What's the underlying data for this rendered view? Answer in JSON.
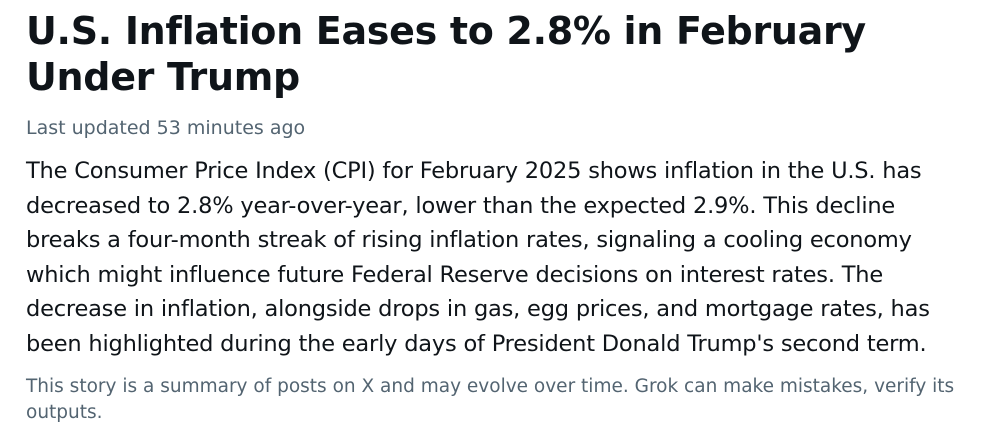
{
  "story": {
    "headline": "U.S. Inflation Eases to 2.8% in February Under Trump",
    "last_updated": "Last updated 53 minutes ago",
    "summary": "The Consumer Price Index (CPI) for February 2025 shows inflation in the U.S. has decreased to 2.8% year-over-year, lower than the expected 2.9%. This decline breaks a four-month streak of rising inflation rates, signaling a cooling economy which might influence future Federal Reserve decisions on interest rates. The decrease in inflation, alongside drops in gas, egg prices, and mortgage rates, has been highlighted during the early days of President Donald Trump's second term.",
    "disclaimer": "This story is a summary of posts on X and may evolve over time. Grok can make mistakes, verify its outputs."
  },
  "colors": {
    "primary_text": "#0f1419",
    "secondary_text": "#536471",
    "background": "#ffffff"
  }
}
